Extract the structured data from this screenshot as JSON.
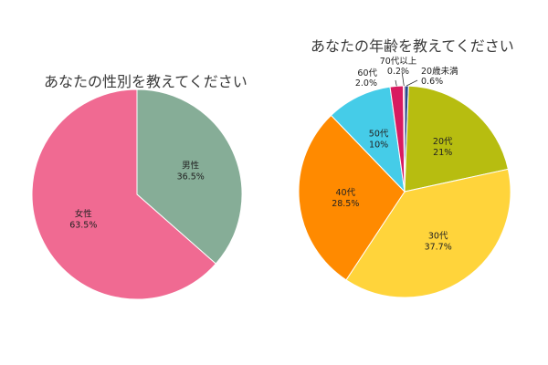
{
  "chart_data": [
    {
      "type": "pie",
      "title": "あなたの性別を教えてください",
      "categories": [
        "男性",
        "女性"
      ],
      "values": [
        36.5,
        63.5
      ],
      "value_labels": [
        "36.5%",
        "63.5%"
      ],
      "colors": [
        "#86ad97",
        "#f06a92"
      ],
      "legend": "none"
    },
    {
      "type": "pie",
      "title": "あなたの年齢を教えてください",
      "categories": [
        "20歳未満",
        "20代",
        "30代",
        "40代",
        "50代",
        "60代",
        "70代以上"
      ],
      "values": [
        0.6,
        21,
        37.7,
        28.5,
        10,
        2.0,
        0.2
      ],
      "value_labels": [
        "0.6%",
        "21%",
        "37.7%",
        "28.5%",
        "10%",
        "2.0%",
        "0.2%"
      ],
      "colors": [
        "#2a4a8c",
        "#b7bd10",
        "#ffd43b",
        "#ff8a00",
        "#45cce8",
        "#d81b60",
        "#e85a8c"
      ],
      "legend": "none"
    }
  ]
}
